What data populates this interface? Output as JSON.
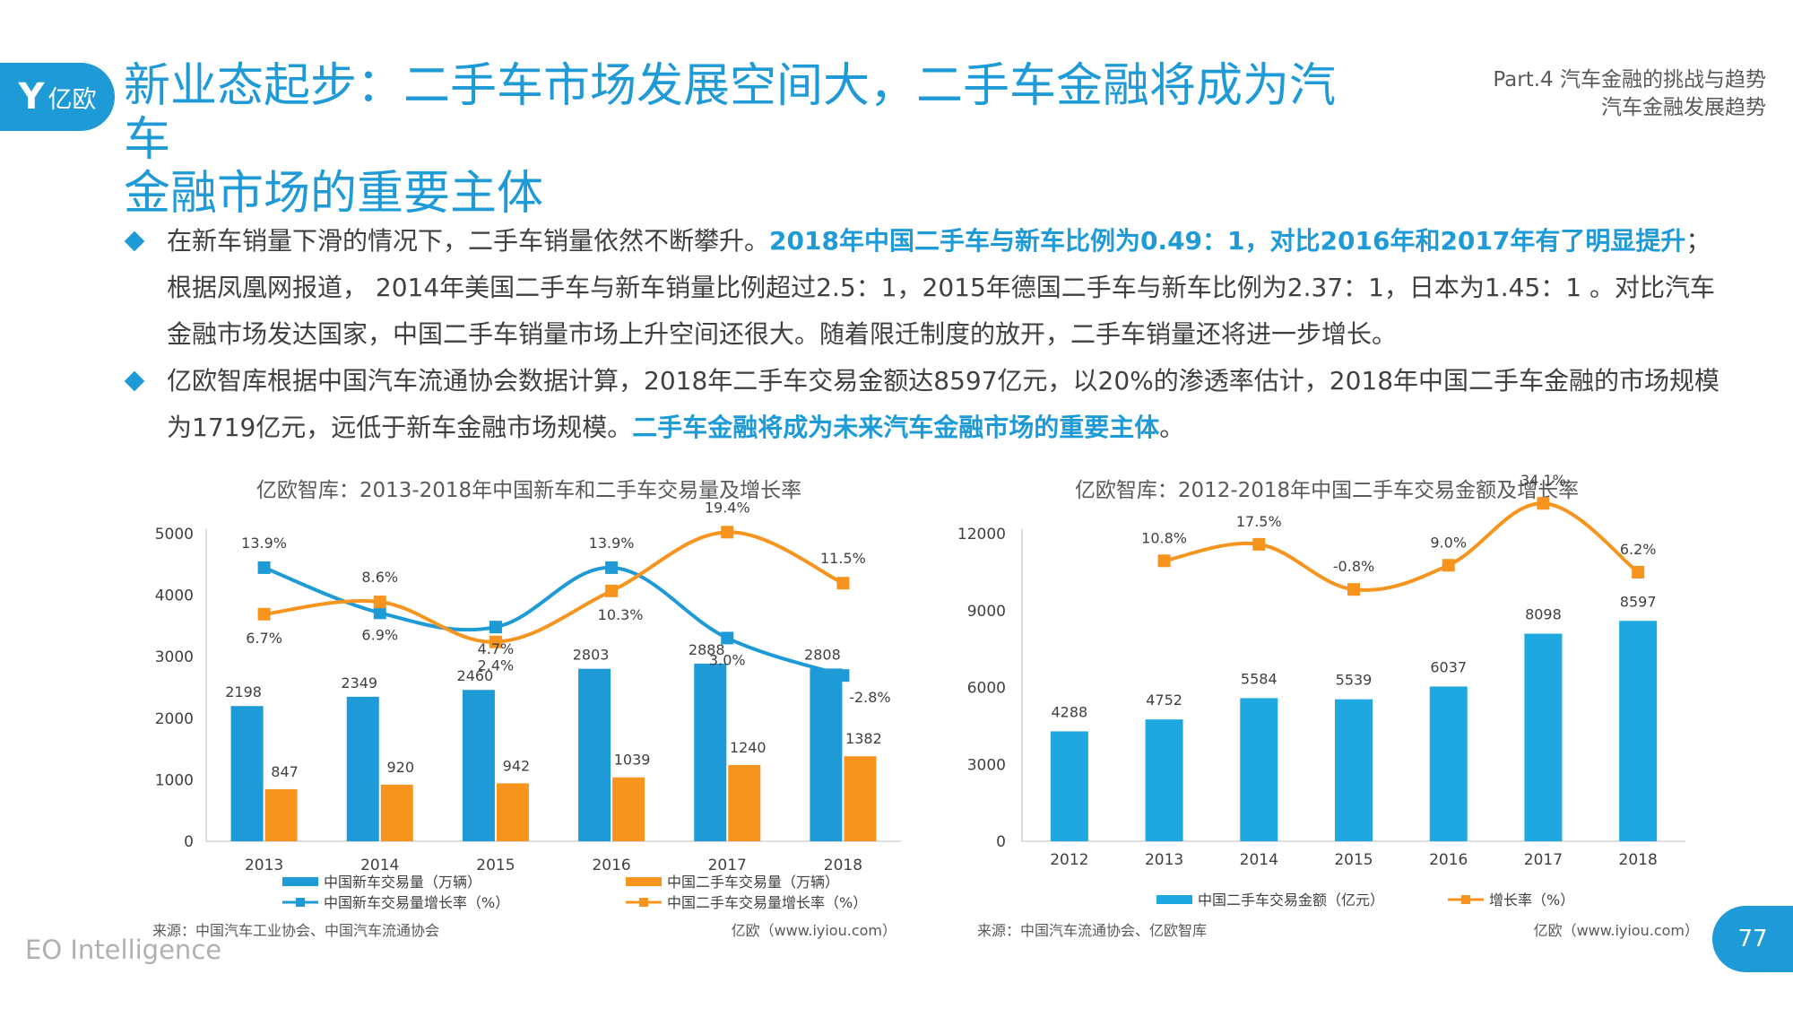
{
  "header": {
    "logo_mark": "Y",
    "logo_text": "亿欧",
    "title_line1": "新业态起步：二手车市场发展空间大，二手车金融将成为汽车",
    "title_line2": "金融市场的重要主体",
    "part_line1": "Part.4 汽车金融的挑战与趋势",
    "part_line2": "汽车金融发展趋势"
  },
  "bullets": [
    {
      "text1": "在新车销量下滑的情况下，二手车销量依然不断攀升。",
      "hl1": "2018年中国二手车与新车比例为0.49：1，对比2016年和2017年有了明显提升",
      "text2": "；根据凤凰网报道， 2014年美国二手车与新车销量比例超过2.5：1，2015年德国二手车与新车比例为2.37：1，日本为1.45：1 。对比汽车金融市场发达国家，中国二手车销量市场上升空间还很大。随着限迁制度的放开，二手车销量还将进一步增长。"
    },
    {
      "text1": "亿欧智库根据中国汽车流通协会数据计算，2018年二手车交易金额达8597亿元，以20%的渗透率估计，2018年中国二手车金融的市场规模为1719亿元，远低于新车金融市场规模。",
      "hl1": "二手车金融将成为未来汽车金融市场的重要主体",
      "text2": "。"
    }
  ],
  "chart_data": [
    {
      "type": "bar",
      "title": "亿欧智库：2013-2018年中国新车和二手车交易量及增长率",
      "categories": [
        "2013",
        "2014",
        "2015",
        "2016",
        "2017",
        "2018"
      ],
      "ylim": [
        0,
        5000
      ],
      "yticks": [
        "0",
        "1000",
        "2000",
        "3000",
        "4000",
        "5000"
      ],
      "series": [
        {
          "name": "中国新车交易量（万辆）",
          "kind": "bar",
          "color": "#1e9ad6",
          "values": [
            2198,
            2349,
            2460,
            2803,
            2888,
            2808
          ]
        },
        {
          "name": "中国二手车交易量（万辆）",
          "kind": "bar",
          "color": "#f7941d",
          "values": [
            847,
            920,
            942,
            1039,
            1240,
            1382
          ]
        },
        {
          "name": "中国新车交易量增长率（%）",
          "kind": "line",
          "color": "#1e9ad6",
          "values": [
            13.9,
            6.9,
            4.7,
            13.9,
            3.0,
            -2.8
          ],
          "labels": [
            "13.9%",
            "6.9%",
            "4.7%",
            "13.9%",
            "3.0%",
            "-2.8%"
          ]
        },
        {
          "name": "中国二手车交易量增长率（%）",
          "kind": "line",
          "color": "#f7941d",
          "values": [
            6.7,
            8.6,
            2.4,
            10.3,
            19.4,
            11.5
          ],
          "labels": [
            "6.7%",
            "8.6%",
            "2.4%",
            "10.3%",
            "19.4%",
            "11.5%"
          ]
        }
      ],
      "source": "来源：中国汽车工业协会、中国汽车流通协会",
      "brand": "亿欧（www.iyiou.com）"
    },
    {
      "type": "bar",
      "title": "亿欧智库：2012-2018年中国二手车交易金额及增长率",
      "categories": [
        "2012",
        "2013",
        "2014",
        "2015",
        "2016",
        "2017",
        "2018"
      ],
      "ylim": [
        0,
        12000
      ],
      "yticks": [
        "0",
        "3000",
        "6000",
        "9000",
        "12000"
      ],
      "series": [
        {
          "name": "中国二手车交易金额（亿元）",
          "kind": "bar",
          "color": "#1ea8df",
          "values": [
            4288,
            4752,
            5584,
            5539,
            6037,
            8098,
            8597
          ]
        },
        {
          "name": "增长率（%）",
          "kind": "line",
          "color": "#f7941d",
          "values": [
            null,
            10.8,
            17.5,
            -0.8,
            9.0,
            34.1,
            6.2
          ],
          "labels": [
            "",
            "10.8%",
            "17.5%",
            "-0.8%",
            "9.0%",
            "34.1%",
            "6.2%"
          ]
        }
      ],
      "source": "来源：中国汽车流通协会、亿欧智库",
      "brand": "亿欧（www.iyiou.com）"
    }
  ],
  "footer": {
    "brand": "EO Intelligence",
    "page": "77"
  }
}
